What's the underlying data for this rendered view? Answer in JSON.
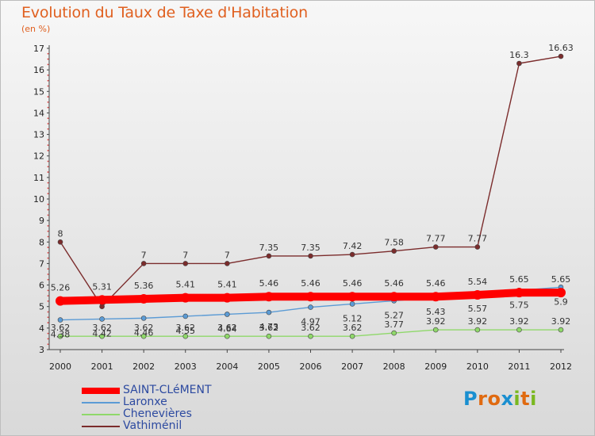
{
  "title": "Evolution du Taux de Taxe d'Habitation",
  "unit": "(en %)",
  "logo": {
    "letters": [
      "P",
      "r",
      "o",
      "x",
      "i",
      "t",
      "i"
    ],
    "colors": [
      "#1a8fd0",
      "#e06a10",
      "#e06a10",
      "#1a8fd0",
      "#7ab820",
      "#e06a10",
      "#7ab820"
    ]
  },
  "chart_data": {
    "type": "line",
    "x": [
      "2000",
      "2001",
      "2002",
      "2003",
      "2004",
      "2005",
      "2006",
      "2007",
      "2008",
      "2009",
      "2010",
      "2011",
      "2012"
    ],
    "ylim": [
      3,
      17
    ],
    "yticks": [
      "3",
      "4",
      "5",
      "6",
      "7",
      "8",
      "9",
      "10",
      "11",
      "12",
      "13",
      "14",
      "15",
      "16",
      "17"
    ],
    "grid": false,
    "legend_position": "bottom-left",
    "series": [
      {
        "name": "SAINT-CLéMENT",
        "color": "#ff0000",
        "values": [
          5.26,
          5.31,
          5.36,
          5.41,
          5.41,
          5.46,
          5.46,
          5.46,
          5.46,
          5.46,
          5.54,
          5.65,
          5.65
        ],
        "labels": [
          "5.26",
          "5.31",
          "5.36",
          "5.41",
          "5.41",
          "5.46",
          "5.46",
          "5.46",
          "5.46",
          "5.46",
          "5.54",
          "5.65",
          "5.65"
        ]
      },
      {
        "name": "Laronxe",
        "color": "#5b9bd5",
        "values": [
          4.38,
          4.42,
          4.46,
          4.55,
          4.64,
          4.73,
          4.97,
          5.12,
          5.27,
          5.43,
          5.57,
          5.75,
          5.9
        ],
        "labels": [
          "4.38",
          "4.42",
          "4.46",
          "4.55",
          "4.64",
          "4.73",
          "4.97",
          "5.12",
          "5.27",
          "5.43",
          "5.57",
          "5.75",
          "5.9"
        ]
      },
      {
        "name": "Chenevières",
        "color": "#8fd86a",
        "values": [
          3.62,
          3.62,
          3.62,
          3.62,
          3.62,
          3.62,
          3.62,
          3.62,
          3.77,
          3.92,
          3.92,
          3.92,
          3.92
        ],
        "labels": [
          "3.62",
          "3.62",
          "3.62",
          "3.62",
          "3.62",
          "3.62",
          "3.62",
          "3.62",
          "3.77",
          "3.92",
          "3.92",
          "3.92",
          "3.92"
        ]
      },
      {
        "name": "Vathiménil",
        "color": "#7b2c2c",
        "values": [
          8,
          5.0,
          7,
          7,
          7,
          7.35,
          7.35,
          7.42,
          7.58,
          7.77,
          7.77,
          16.3,
          16.63
        ],
        "labels": [
          "8",
          "",
          "7",
          "7",
          "7",
          "7.35",
          "7.35",
          "7.42",
          "7.58",
          "7.77",
          "7.77",
          "16.3",
          "16.63"
        ]
      }
    ]
  }
}
